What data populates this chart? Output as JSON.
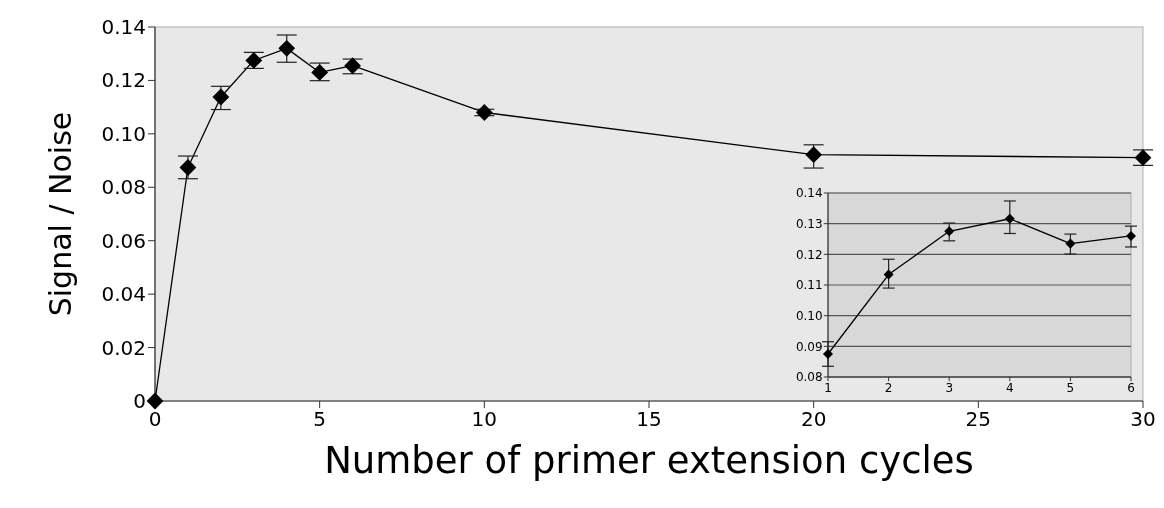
{
  "chart_data": [
    {
      "type": "line",
      "xlabel": "Number of primer extension cycles",
      "ylabel": "Signal / Noise",
      "x": [
        0,
        1,
        2,
        3,
        4,
        5,
        6,
        10,
        20,
        30
      ],
      "values": [
        0,
        0.0874,
        0.1138,
        0.1275,
        0.132,
        0.123,
        0.1255,
        0.108,
        0.0922,
        0.0911
      ],
      "errors": [
        null,
        [
          0.0832,
          0.0917
        ],
        [
          0.1091,
          0.1178
        ],
        [
          0.1245,
          0.1305
        ],
        [
          0.1268,
          0.137
        ],
        [
          0.1199,
          0.1265
        ],
        [
          0.1225,
          0.128
        ],
        [
          0.1068,
          0.1092
        ],
        [
          0.0872,
          0.0959
        ],
        [
          0.0882,
          0.094
        ]
      ],
      "color": "#000000",
      "marker": "diamond",
      "xlim": [
        0,
        30
      ],
      "xticks": [
        0,
        5,
        10,
        15,
        20,
        25,
        30
      ],
      "ylim": [
        0,
        0.14
      ],
      "yticks": [
        {
          "value": 0,
          "label": "0"
        },
        {
          "value": 0.02,
          "label": "0.02"
        },
        {
          "value": 0.04,
          "label": "0.04"
        },
        {
          "value": 0.06,
          "label": "0.06"
        },
        {
          "value": 0.08,
          "label": "0.08"
        },
        {
          "value": 0.1,
          "label": "0.10"
        },
        {
          "value": 0.12,
          "label": "0.12"
        },
        {
          "value": 0.14,
          "label": "0.14"
        }
      ],
      "grid": false
    },
    {
      "type": "line",
      "x": [
        1,
        2,
        3,
        4,
        5,
        6
      ],
      "values": [
        0.0875,
        0.1134,
        0.1275,
        0.1316,
        0.1235,
        0.126
      ],
      "errors": [
        [
          0.0835,
          0.0915
        ],
        [
          0.109,
          0.1184
        ],
        [
          0.1244,
          0.1302
        ],
        [
          0.1268,
          0.1374
        ],
        [
          0.1201,
          0.1266
        ],
        [
          0.1224,
          0.1292
        ]
      ],
      "color": "#000000",
      "marker": "diamond",
      "xlim": [
        1,
        6
      ],
      "xticks": [
        1,
        2,
        3,
        4,
        5,
        6
      ],
      "ylim": [
        0.08,
        0.14
      ],
      "yticks": [
        {
          "value": 0.08,
          "label": "0.08"
        },
        {
          "value": 0.09,
          "label": "0.09"
        },
        {
          "value": 0.1,
          "label": "0.10"
        },
        {
          "value": 0.11,
          "label": "0.11"
        },
        {
          "value": 0.12,
          "label": "0.12"
        },
        {
          "value": 0.13,
          "label": "0.13"
        },
        {
          "value": 0.14,
          "label": "0.14"
        }
      ],
      "grid": "y"
    }
  ]
}
